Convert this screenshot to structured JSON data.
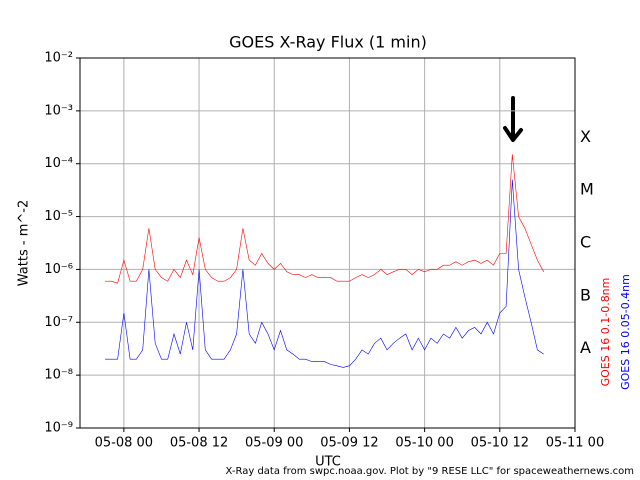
{
  "chart_data": {
    "type": "line",
    "title": "GOES X-Ray Flux (1 min)",
    "xlabel": "UTC",
    "ylabel": "Watts - m^-2",
    "credit": "X-Ray data from swpc.noaa.gov. Plot by \"9 RESE LLC\" for spaceweathernews.com",
    "log_y": true,
    "grid": true,
    "xlim": [
      "05-07 17",
      "05-11 00"
    ],
    "xticks": [
      "05-08 00",
      "05-08 12",
      "05-09 00",
      "05-09 12",
      "05-10 00",
      "05-10 12",
      "05-11 00"
    ],
    "ylim": [
      1e-09,
      0.01
    ],
    "yticks": [
      {
        "value": 1e-09,
        "label": "10⁻⁹"
      },
      {
        "value": 1e-08,
        "label": "10⁻⁸"
      },
      {
        "value": 1e-07,
        "label": "10⁻⁷"
      },
      {
        "value": 1e-06,
        "label": "10⁻⁶"
      },
      {
        "value": 1e-05,
        "label": "10⁻⁵"
      },
      {
        "value": 0.0001,
        "label": "10⁻⁴"
      },
      {
        "value": 0.001,
        "label": "10⁻³"
      },
      {
        "value": 0.01,
        "label": "10⁻²"
      }
    ],
    "flare_classes": [
      {
        "label": "X",
        "value": 0.0001
      },
      {
        "label": "M",
        "value": 1e-05
      },
      {
        "label": "C",
        "value": 1e-06
      },
      {
        "label": "B",
        "value": 1e-07
      },
      {
        "label": "A",
        "value": 1e-08
      }
    ],
    "x": [
      "05-07 21",
      "05-07 22",
      "05-07 23",
      "05-08 00",
      "05-08 01",
      "05-08 02",
      "05-08 03",
      "05-08 04",
      "05-08 05",
      "05-08 06",
      "05-08 07",
      "05-08 08",
      "05-08 09",
      "05-08 10",
      "05-08 11",
      "05-08 12",
      "05-08 13",
      "05-08 14",
      "05-08 15",
      "05-08 16",
      "05-08 17",
      "05-08 18",
      "05-08 19",
      "05-08 20",
      "05-08 21",
      "05-08 22",
      "05-08 23",
      "05-09 00",
      "05-09 01",
      "05-09 02",
      "05-09 03",
      "05-09 04",
      "05-09 05",
      "05-09 06",
      "05-09 07",
      "05-09 08",
      "05-09 09",
      "05-09 10",
      "05-09 11",
      "05-09 12",
      "05-09 13",
      "05-09 14",
      "05-09 15",
      "05-09 16",
      "05-09 17",
      "05-09 18",
      "05-09 19",
      "05-09 20",
      "05-09 21",
      "05-09 22",
      "05-09 23",
      "05-10 00",
      "05-10 01",
      "05-10 02",
      "05-10 03",
      "05-10 04",
      "05-10 05",
      "05-10 06",
      "05-10 07",
      "05-10 08",
      "05-10 09",
      "05-10 10",
      "05-10 11",
      "05-10 12",
      "05-10 13",
      "05-10 14",
      "05-10 15",
      "05-10 16",
      "05-10 17",
      "05-10 18",
      "05-10 19"
    ],
    "series": [
      {
        "name": "GOES 16 0.1-0.8nm",
        "color": "#ff0000",
        "values": [
          6e-07,
          6e-07,
          5.5e-07,
          1.5e-06,
          6e-07,
          6e-07,
          1e-06,
          6e-06,
          1e-06,
          7e-07,
          6e-07,
          1e-06,
          7e-07,
          1.5e-06,
          8e-07,
          4e-06,
          1e-06,
          7e-07,
          6e-07,
          6e-07,
          7e-07,
          1e-06,
          6e-06,
          1.5e-06,
          1.2e-06,
          2e-06,
          1.3e-06,
          1e-06,
          1.3e-06,
          9e-07,
          8e-07,
          8e-07,
          7e-07,
          8e-07,
          7e-07,
          7e-07,
          7e-07,
          6e-07,
          6e-07,
          6e-07,
          7e-07,
          8e-07,
          7e-07,
          8e-07,
          1e-06,
          8e-07,
          9e-07,
          1e-06,
          1e-06,
          8e-07,
          1e-06,
          9e-07,
          1e-06,
          1e-06,
          1.2e-06,
          1.2e-06,
          1.4e-06,
          1.2e-06,
          1.4e-06,
          1.5e-06,
          1.3e-06,
          1.5e-06,
          1.2e-06,
          2e-06,
          2e-06,
          0.00015,
          1e-05,
          6e-06,
          3e-06,
          1.5e-06,
          9e-07
        ]
      },
      {
        "name": "GOES 16 0.05-0.4nm",
        "color": "#0000ff",
        "values": [
          2e-08,
          2e-08,
          2e-08,
          1.5e-07,
          2e-08,
          2e-08,
          3e-08,
          1e-06,
          4e-08,
          2e-08,
          2e-08,
          6e-08,
          2.5e-08,
          1e-07,
          3e-08,
          1e-06,
          3e-08,
          2e-08,
          2e-08,
          2e-08,
          3e-08,
          6e-08,
          1e-06,
          6e-08,
          4e-08,
          1e-07,
          6e-08,
          3e-08,
          7e-08,
          3e-08,
          2.5e-08,
          2e-08,
          2e-08,
          1.8e-08,
          1.8e-08,
          1.8e-08,
          1.6e-08,
          1.5e-08,
          1.4e-08,
          1.5e-08,
          2e-08,
          3e-08,
          2.5e-08,
          4e-08,
          5e-08,
          3e-08,
          4e-08,
          5e-08,
          6e-08,
          3e-08,
          5e-08,
          3e-08,
          5e-08,
          4e-08,
          6e-08,
          5e-08,
          8e-08,
          5e-08,
          7e-08,
          8e-08,
          6e-08,
          1e-07,
          6e-08,
          1.5e-07,
          2e-07,
          5e-05,
          1e-06,
          3e-07,
          1e-07,
          3e-08,
          2.5e-08
        ]
      }
    ]
  }
}
